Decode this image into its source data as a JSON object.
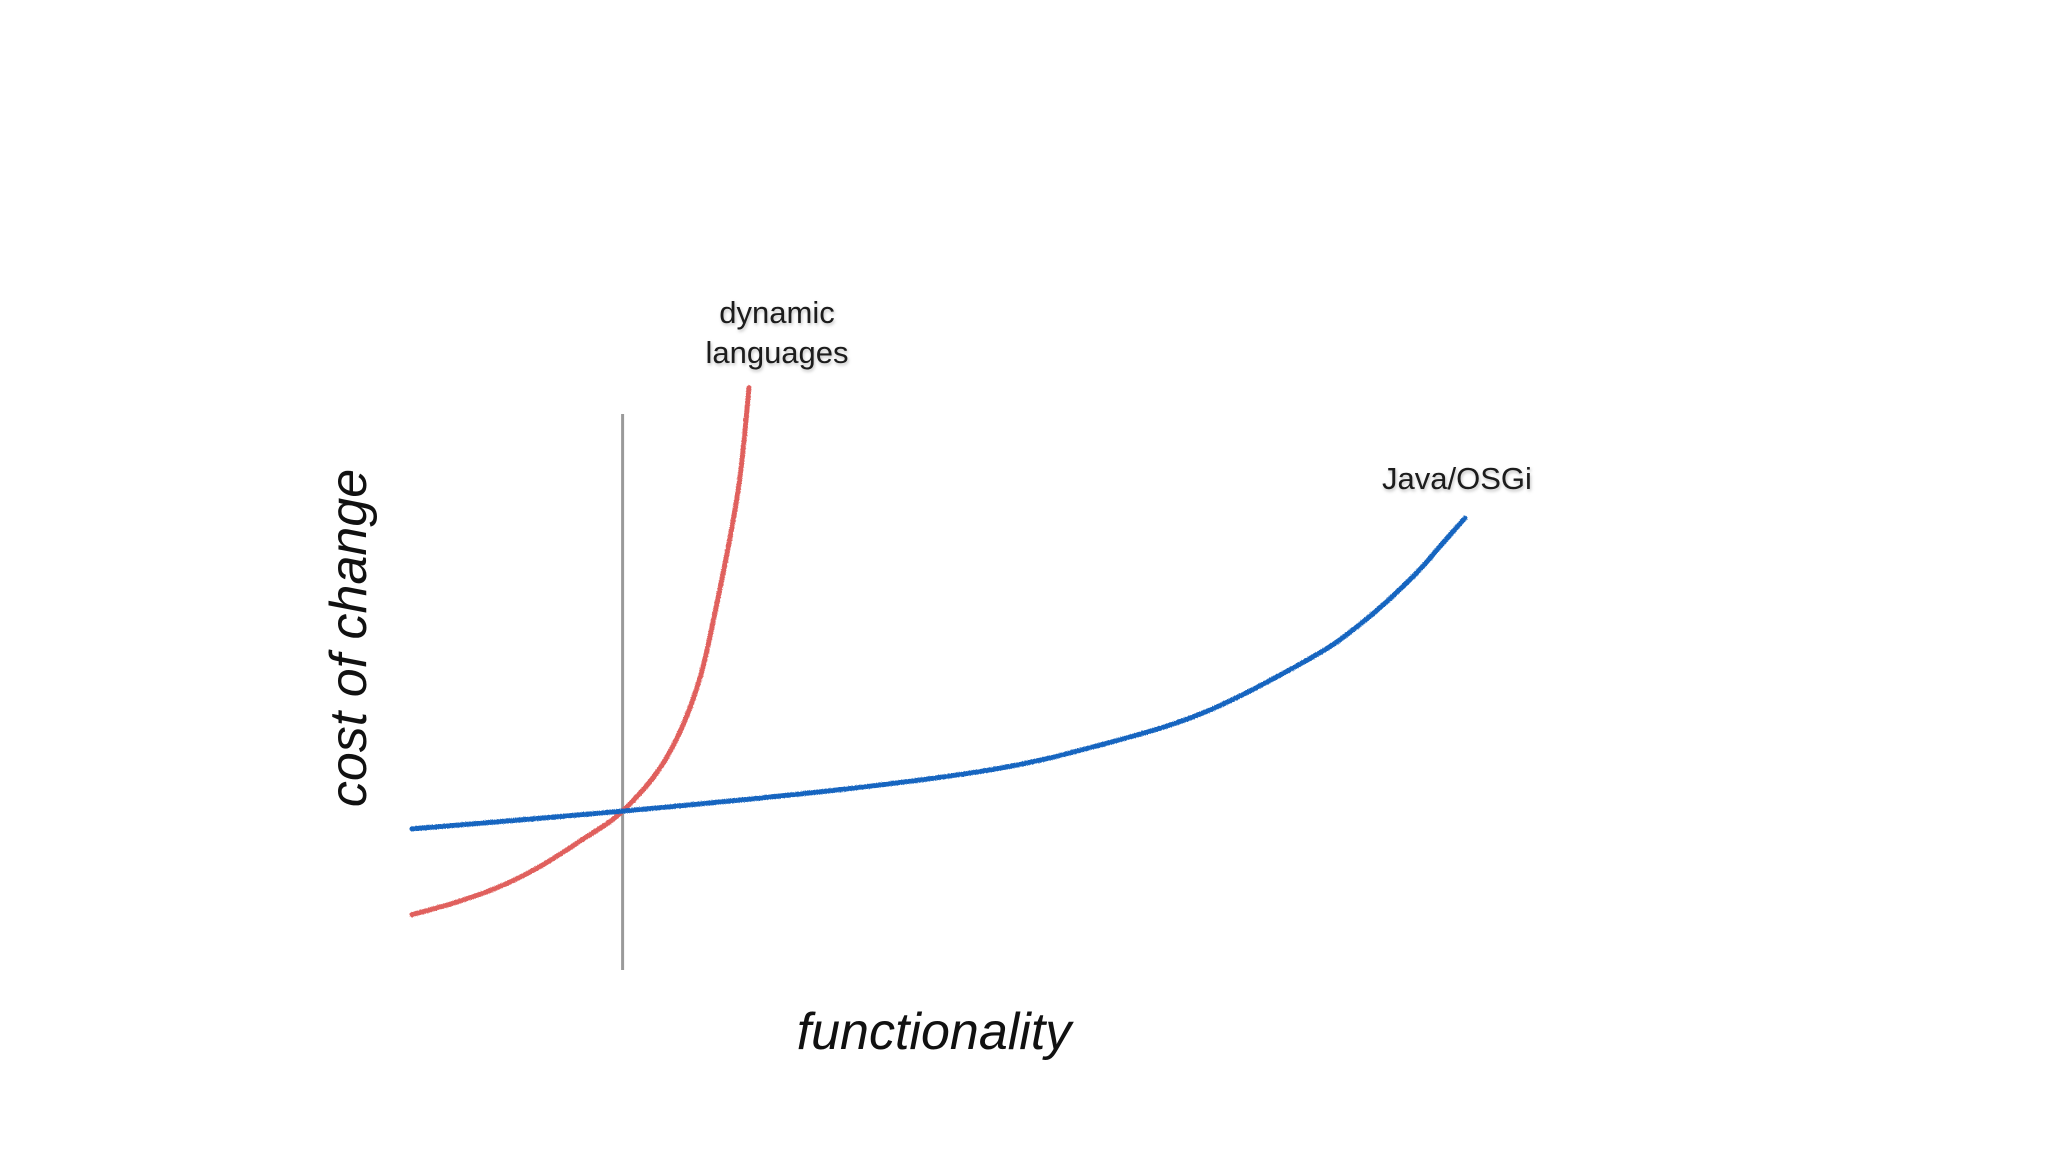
{
  "chart_data": {
    "type": "line",
    "xlabel": "functionality",
    "ylabel": "cost of change",
    "xlim": [
      0,
      100
    ],
    "ylim": [
      0,
      100
    ],
    "grid": false,
    "legend": "none",
    "axis_color": "#000000",
    "reference_line": {
      "x": 20,
      "color": "#9a9a9a"
    },
    "series": [
      {
        "name": "dynamic languages",
        "color": "#e0605d",
        "points": [
          [
            0,
            9
          ],
          [
            4,
            11
          ],
          [
            8,
            13.5
          ],
          [
            12,
            17
          ],
          [
            16,
            21.5
          ],
          [
            20,
            26.5
          ],
          [
            24,
            35
          ],
          [
            27,
            47
          ],
          [
            29,
            62
          ],
          [
            31,
            81
          ],
          [
            32,
            98
          ]
        ]
      },
      {
        "name": "Java/OSGi",
        "color": "#1565c0",
        "points": [
          [
            0,
            23.5
          ],
          [
            20,
            26.5
          ],
          [
            40,
            30
          ],
          [
            55,
            33.5
          ],
          [
            65,
            37.5
          ],
          [
            75,
            43
          ],
          [
            85,
            52
          ],
          [
            90,
            58
          ],
          [
            95,
            66
          ],
          [
            98,
            72
          ],
          [
            100,
            76
          ]
        ]
      }
    ]
  }
}
